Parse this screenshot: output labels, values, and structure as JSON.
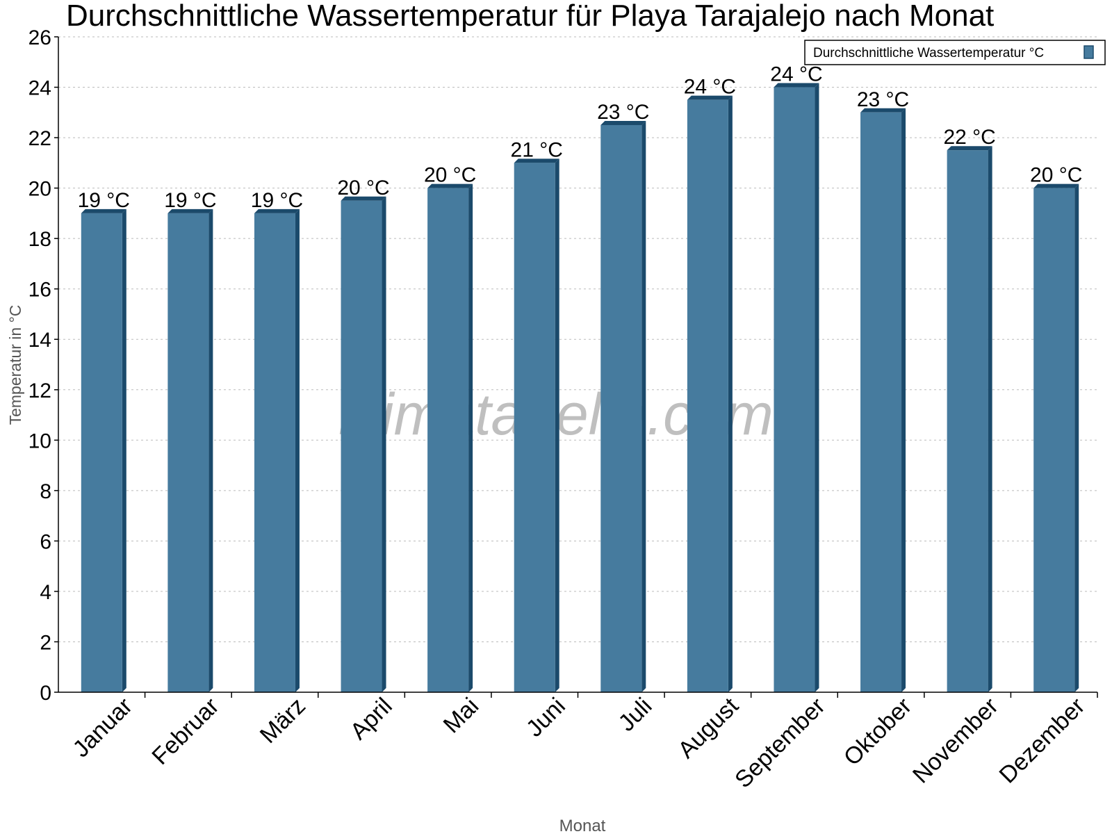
{
  "chart_data": {
    "type": "bar",
    "title": "Durchschnittliche Wassertemperatur für Playa Tarajalejo nach Monat",
    "xlabel": "Monat",
    "ylabel": "Temperatur in °C",
    "categories": [
      "Januar",
      "Februar",
      "März",
      "April",
      "Mai",
      "Juni",
      "Juli",
      "August",
      "September",
      "Oktober",
      "November",
      "Dezember"
    ],
    "series": [
      {
        "name": "Durchschnittliche Wassertemperatur °C",
        "values": [
          19,
          19,
          19,
          19.5,
          20,
          21,
          22.5,
          23.5,
          24,
          23,
          21.5,
          20
        ],
        "data_labels": [
          "19 °C",
          "19 °C",
          "19 °C",
          "20 °C",
          "20 °C",
          "21 °C",
          "23 °C",
          "24 °C",
          "24 °C",
          "23 °C",
          "22 °C",
          "20 °C"
        ],
        "color": "#467b9e",
        "shade_color": "#1b4a6b"
      }
    ],
    "ylim": [
      0,
      26
    ],
    "yticks": [
      "0",
      "2",
      "4",
      "6",
      "8",
      "10",
      "12",
      "14",
      "16",
      "18",
      "20",
      "22",
      "24",
      "26"
    ],
    "grid": true,
    "legend": "top-right",
    "watermark": "klimatabelle.com"
  }
}
